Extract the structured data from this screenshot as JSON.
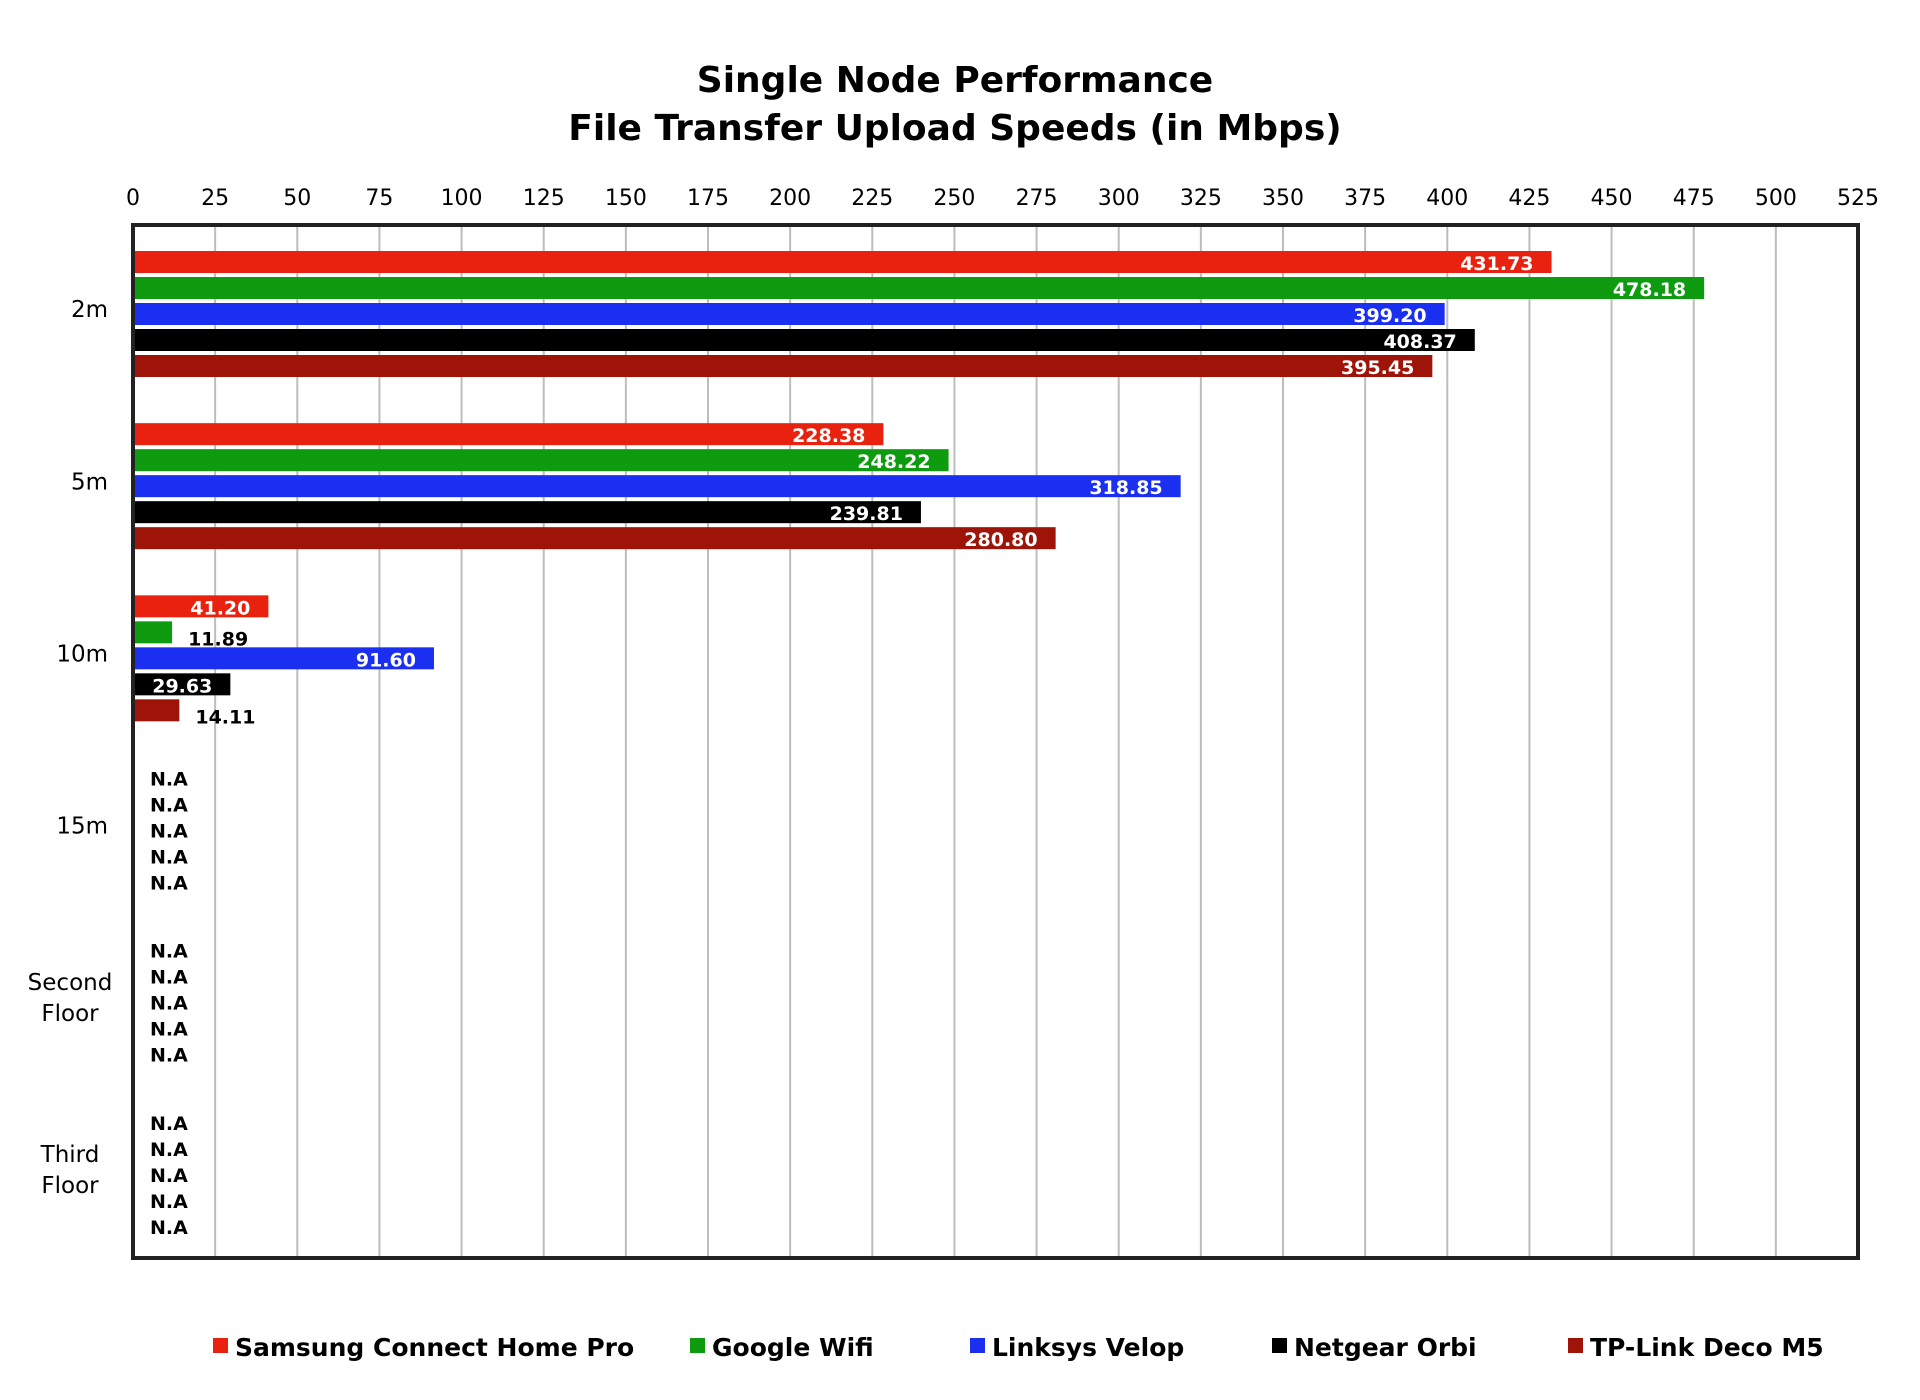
{
  "chart_data": {
    "type": "bar",
    "orientation": "horizontal",
    "title": [
      "Single Node Performance",
      "File Transfer Upload Speeds (in Mbps)"
    ],
    "categories": [
      "2m",
      "5m",
      "10m",
      "15m",
      "Second Floor",
      "Third Floor"
    ],
    "x_ticks": [
      "0",
      "25",
      "50",
      "75",
      "100",
      "125",
      "150",
      "175",
      "200",
      "225",
      "250",
      "275",
      "300",
      "325",
      "350",
      "375",
      "400",
      "425",
      "450",
      "475",
      "500",
      "525"
    ],
    "xlim": [
      0,
      525
    ],
    "grid": "vertical",
    "legend_position": "bottom",
    "missing_label": "N.A",
    "series": [
      {
        "name": "Samsung Connect Home Pro",
        "color": "#e8220e",
        "values": [
          431.73,
          228.38,
          41.2,
          null,
          null,
          null
        ],
        "labels": [
          "431.73",
          "228.38",
          "41.20",
          "N.A",
          "N.A",
          "N.A"
        ]
      },
      {
        "name": "Google Wifi",
        "color": "#0f9b0f",
        "values": [
          478.18,
          248.22,
          11.89,
          null,
          null,
          null
        ],
        "labels": [
          "478.18",
          "248.22",
          "11.89",
          "N.A",
          "N.A",
          "N.A"
        ]
      },
      {
        "name": "Linksys Velop",
        "color": "#1a2ff0",
        "values": [
          399.2,
          318.85,
          91.6,
          null,
          null,
          null
        ],
        "labels": [
          "399.20",
          "318.85",
          "91.60",
          "N.A",
          "N.A",
          "N.A"
        ]
      },
      {
        "name": "Netgear Orbi",
        "color": "#000000",
        "values": [
          408.37,
          239.81,
          29.63,
          null,
          null,
          null
        ],
        "labels": [
          "408.37",
          "239.81",
          "29.63",
          "N.A",
          "N.A",
          "N.A"
        ]
      },
      {
        "name": "TP-Link Deco M5",
        "color": "#9e1408",
        "values": [
          395.45,
          280.8,
          14.11,
          null,
          null,
          null
        ],
        "labels": [
          "395.45",
          "280.80",
          "14.11",
          "N.A",
          "N.A",
          "N.A"
        ]
      }
    ]
  }
}
